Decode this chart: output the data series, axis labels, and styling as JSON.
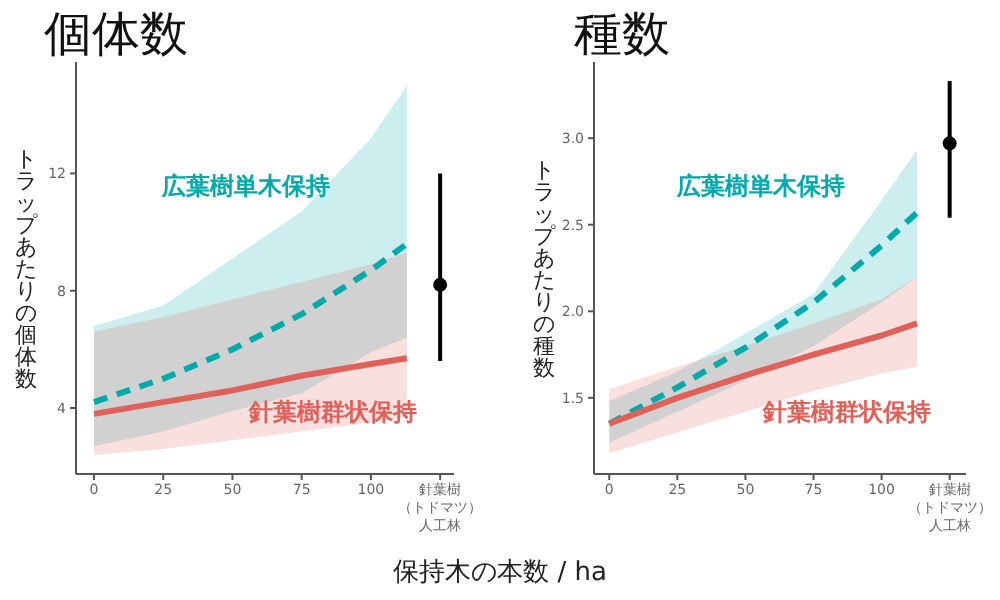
{
  "chart_data": [
    {
      "type": "line",
      "title": "個体数",
      "xlabel": "保持木の本数 / ha",
      "ylabel": "トラップあたりの個体数",
      "xlim": [
        -6.5,
        130
      ],
      "ylim": [
        1.75,
        15.8
      ],
      "xticks": [
        0,
        25,
        50,
        75,
        100,
        {
          "value": 125,
          "label": "針葉樹（トドマツ）人工林"
        }
      ],
      "yticks": [
        4,
        8,
        12
      ],
      "grid": false,
      "series": [
        {
          "name": "広葉樹単木保持",
          "color": "#00aaaa",
          "line_style": "dashed",
          "x": [
            0,
            25,
            50,
            75,
            100,
            113
          ],
          "values": [
            4.2,
            5.0,
            6.0,
            7.2,
            8.7,
            9.6
          ],
          "lower": [
            2.7,
            3.2,
            3.9,
            4.5,
            5.9,
            6.4
          ],
          "upper": [
            6.8,
            7.5,
            9.1,
            10.7,
            13.2,
            15.0
          ]
        },
        {
          "name": "針葉樹群状保持",
          "color": "#e0605a",
          "line_style": "solid",
          "x": [
            0,
            25,
            50,
            75,
            100,
            113
          ],
          "values": [
            3.8,
            4.2,
            4.6,
            5.1,
            5.5,
            5.7
          ],
          "lower": [
            2.4,
            2.6,
            2.9,
            3.2,
            3.5,
            3.7
          ],
          "upper": [
            6.6,
            7.1,
            7.7,
            8.3,
            8.9,
            9.3
          ]
        },
        {
          "type": "scatter",
          "marker": "circle",
          "color": "#000000",
          "x": [
            125
          ],
          "values": [
            8.2
          ],
          "errors": [
            [
              5.6,
              12.0
            ]
          ]
        }
      ]
    },
    {
      "type": "line",
      "title": "種数",
      "ylabel": "トラップあたりの種数",
      "xlim": [
        -5.6,
        131
      ],
      "ylim": [
        1.06,
        3.44
      ],
      "xticks": [
        0,
        25,
        50,
        75,
        100,
        {
          "value": 125,
          "label": "針葉樹（トドマツ）人工林"
        }
      ],
      "yticks": [
        1.5,
        {
          "value": 2,
          "label": "2.0"
        },
        2.5,
        {
          "value": 3,
          "label": "3.0"
        }
      ],
      "grid": false,
      "series": [
        {
          "name": "広葉樹単木保持",
          "color": "#00aaaa",
          "line_style": "dashed",
          "x": [
            0,
            25,
            50,
            75,
            100,
            113
          ],
          "values": [
            1.35,
            1.56,
            1.79,
            2.05,
            2.38,
            2.57
          ],
          "lower": [
            1.24,
            1.42,
            1.6,
            1.8,
            2.05,
            2.2
          ],
          "upper": [
            1.48,
            1.65,
            1.87,
            2.1,
            2.64,
            2.93
          ]
        },
        {
          "name": "針葉樹群状保持",
          "color": "#e0605a",
          "line_style": "solid",
          "x": [
            0,
            25,
            50,
            75,
            100,
            113
          ],
          "values": [
            1.35,
            1.5,
            1.63,
            1.75,
            1.86,
            1.93
          ],
          "lower": [
            1.18,
            1.3,
            1.42,
            1.54,
            1.64,
            1.68
          ],
          "upper": [
            1.55,
            1.68,
            1.8,
            1.93,
            2.07,
            2.2
          ]
        },
        {
          "type": "scatter",
          "marker": "circle",
          "color": "#000000",
          "x": [
            125
          ],
          "values": [
            2.97
          ],
          "errors": [
            [
              2.54,
              3.33
            ]
          ]
        }
      ]
    }
  ]
}
